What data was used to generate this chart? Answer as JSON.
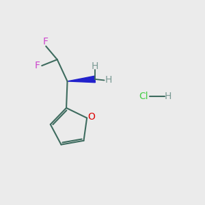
{
  "background_color": "#ebebeb",
  "bond_color": "#3d6b5e",
  "F_color": "#cc44cc",
  "O_color": "#dd0000",
  "N_color": "#2222cc",
  "H_color": "#7a9a94",
  "Cl_color": "#44cc44",
  "HCl_H_color": "#7a9a94",
  "bond_width": 1.5,
  "font_size_atom": 10,
  "font_size_HCl": 10,
  "wedge_color": "#2222cc",
  "fig_w": 3.0,
  "fig_h": 3.0,
  "dpi": 100,
  "xlim": [
    0,
    10
  ],
  "ylim": [
    0,
    10
  ]
}
